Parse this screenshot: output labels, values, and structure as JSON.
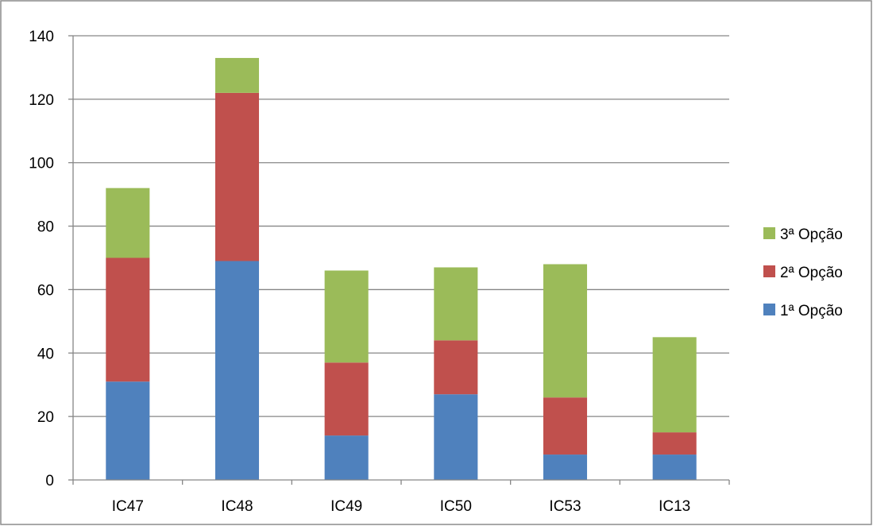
{
  "chart_data": {
    "type": "bar",
    "stacked": true,
    "categories": [
      "IC47",
      "IC48",
      "IC49",
      "IC50",
      "IC53",
      "IC13"
    ],
    "series": [
      {
        "name": "1ª Opção",
        "color": "#4f81bd",
        "values": [
          31,
          69,
          14,
          27,
          8,
          8
        ]
      },
      {
        "name": "2ª Opção",
        "color": "#c0504d",
        "values": [
          39,
          53,
          23,
          17,
          18,
          7
        ]
      },
      {
        "name": "3ª Opção",
        "color": "#9bbb59",
        "values": [
          22,
          11,
          29,
          23,
          42,
          30
        ]
      }
    ],
    "ylim": [
      0,
      140
    ],
    "yticks": [
      0,
      20,
      40,
      60,
      80,
      100,
      120,
      140
    ],
    "grid": true,
    "legend": "right"
  }
}
